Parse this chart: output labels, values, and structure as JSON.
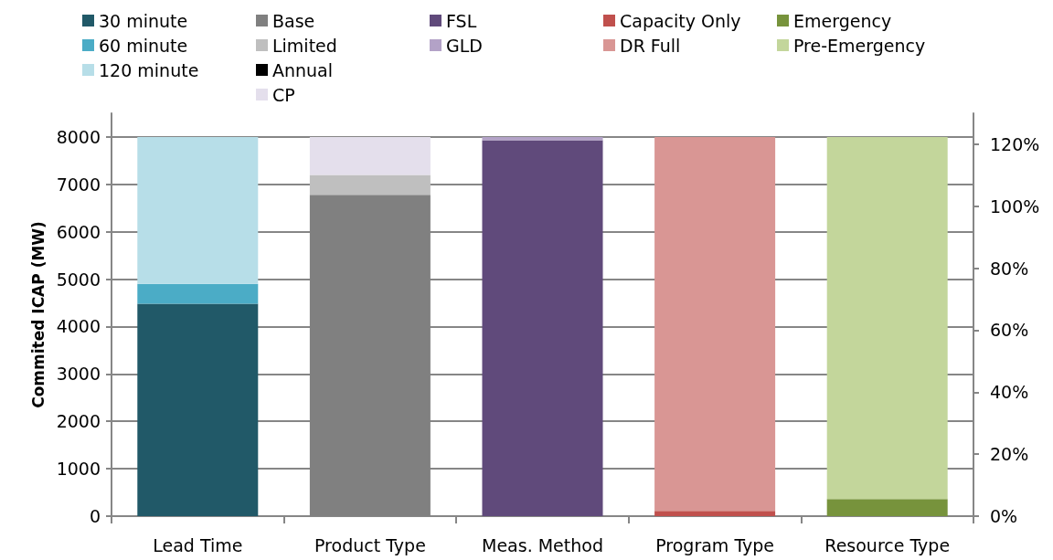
{
  "chart_data": {
    "type": "bar",
    "stacked": true,
    "ylabel": "Commited ICAP (MW)",
    "categories": [
      "Lead Time",
      "Product Type",
      "Meas. Method",
      "Program Type",
      "Resource Type"
    ],
    "series": [
      {
        "name": "30 minute",
        "color": "#215968",
        "values": [
          4480,
          null,
          null,
          null,
          null
        ]
      },
      {
        "name": "60 minute",
        "color": "#4bacc6",
        "values": [
          420,
          null,
          null,
          null,
          null
        ]
      },
      {
        "name": "120 minute",
        "color": "#b7dee8",
        "values": [
          3100,
          null,
          null,
          null,
          null
        ]
      },
      {
        "name": "Base",
        "color": "#808080",
        "values": [
          null,
          6780,
          null,
          null,
          null
        ]
      },
      {
        "name": "Limited",
        "color": "#bfbfbf",
        "values": [
          null,
          420,
          null,
          null,
          null
        ]
      },
      {
        "name": "Annual",
        "color": "#000000",
        "values": [
          null,
          null,
          null,
          null,
          null
        ]
      },
      {
        "name": "CP",
        "color": "#e4dfec",
        "values": [
          null,
          800,
          null,
          null,
          null
        ]
      },
      {
        "name": "FSL",
        "color": "#604a7b",
        "values": [
          null,
          null,
          7930,
          null,
          null
        ]
      },
      {
        "name": "GLD",
        "color": "#b3a2c7",
        "values": [
          null,
          null,
          70,
          null,
          null
        ]
      },
      {
        "name": "Capacity Only",
        "color": "#c0504d",
        "values": [
          null,
          null,
          null,
          110,
          null
        ]
      },
      {
        "name": "DR Full",
        "color": "#d99694",
        "values": [
          null,
          null,
          null,
          7890,
          null
        ]
      },
      {
        "name": "Emergency",
        "color": "#77933c",
        "values": [
          null,
          null,
          null,
          null,
          360
        ]
      },
      {
        "name": "Pre-Emergency",
        "color": "#c3d69b",
        "values": [
          null,
          null,
          null,
          null,
          7640
        ]
      }
    ],
    "ylim": [
      0,
      8500
    ],
    "yticks": [
      0,
      1000,
      2000,
      3000,
      4000,
      5000,
      6000,
      7000,
      8000
    ],
    "y2lim": [
      0,
      130
    ],
    "y2ticks": [
      {
        "value": 0,
        "label": "0%"
      },
      {
        "value": 20,
        "label": "20%"
      },
      {
        "value": 40,
        "label": "40%"
      },
      {
        "value": 60,
        "label": "60%"
      },
      {
        "value": 80,
        "label": "80%"
      },
      {
        "value": 100,
        "label": "100%"
      },
      {
        "value": 120,
        "label": "120%"
      }
    ],
    "grid": "y",
    "legend": "top"
  }
}
